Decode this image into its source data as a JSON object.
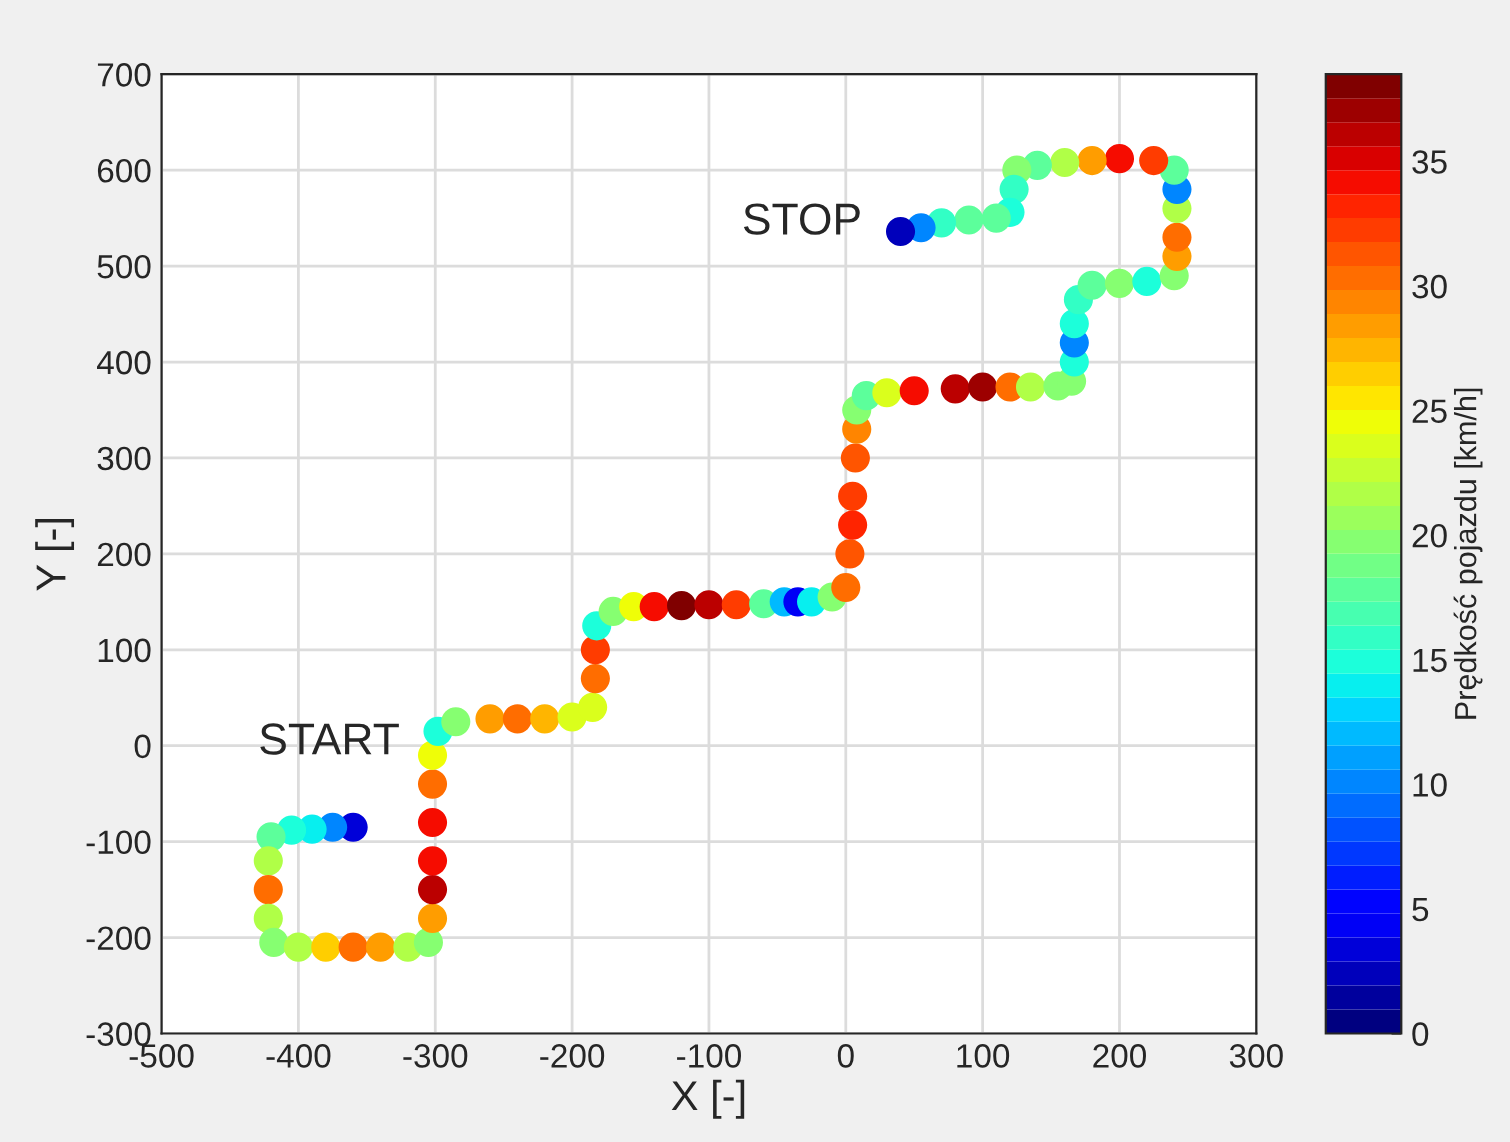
{
  "chart_data": {
    "type": "scatter",
    "xlabel": "X [-]",
    "ylabel": "Y [-]",
    "clabel": "Prędkość pojazdu [km/h]",
    "xlim": [
      -500,
      300
    ],
    "xticks": [
      -500,
      -400,
      -300,
      -200,
      -100,
      0,
      100,
      200,
      300
    ],
    "ylim": [
      -300,
      700
    ],
    "yticks": [
      -300,
      -200,
      -100,
      0,
      100,
      200,
      300,
      400,
      500,
      600,
      700
    ],
    "clim": [
      0,
      38.5
    ],
    "cticks": [
      0,
      5,
      10,
      15,
      20,
      25,
      30,
      35
    ],
    "grid": true,
    "marker": "circle",
    "legend": false,
    "annotations": [
      "START",
      "STOP"
    ],
    "series": [
      {
        "x": [
          -360,
          -375,
          -390,
          -405,
          -420,
          -422,
          -422,
          -422,
          -418,
          -400,
          -380,
          -360,
          -340,
          -320,
          -305,
          -302,
          -302,
          -302,
          -302,
          -302,
          -302,
          -298,
          -285,
          -260,
          -240,
          -220,
          -200,
          -185,
          -183,
          -183,
          -182,
          -170,
          -155,
          -140,
          -120,
          -100,
          -80,
          -60,
          -45,
          -35,
          -25,
          -10,
          0,
          3,
          5,
          5,
          7,
          8,
          8,
          15,
          30,
          50,
          80,
          100,
          120,
          135,
          155,
          165,
          167,
          167,
          167,
          170,
          180,
          200,
          220,
          240,
          242,
          242,
          242,
          242,
          240,
          225,
          200,
          180,
          160,
          140,
          125,
          123,
          120,
          110,
          90,
          70,
          55,
          40
        ],
        "values": [
          -85,
          -85,
          -87,
          -88,
          -95,
          -120,
          -150,
          -180,
          -205,
          -210,
          -210,
          -210,
          -210,
          -210,
          -205,
          -180,
          -150,
          -120,
          -80,
          -40,
          -10,
          15,
          25,
          28,
          28,
          28,
          30,
          40,
          70,
          100,
          125,
          140,
          145,
          145,
          146,
          147,
          147,
          148,
          150,
          150,
          150,
          155,
          165,
          200,
          230,
          260,
          300,
          330,
          350,
          365,
          368,
          370,
          372,
          374,
          374,
          374,
          375,
          380,
          400,
          420,
          440,
          465,
          480,
          482,
          484,
          490,
          510,
          530,
          560,
          580,
          600,
          610,
          612,
          610,
          608,
          605,
          600,
          580,
          556,
          550,
          548,
          545,
          540,
          536
        ],
        "cvalues": [
          3,
          10,
          14,
          15,
          18,
          22,
          30,
          22,
          20,
          22,
          26,
          30,
          28,
          22,
          20,
          28,
          36,
          34,
          34,
          30,
          25,
          15,
          20,
          28,
          30,
          27,
          24,
          24,
          30,
          32,
          15,
          20,
          25,
          34,
          38,
          36,
          32,
          18,
          12,
          4,
          14,
          20,
          30,
          31,
          33,
          32,
          31,
          29,
          20,
          18,
          24,
          34,
          36,
          37,
          30,
          22,
          20,
          20,
          15,
          10,
          15,
          16,
          18,
          20,
          15,
          20,
          28,
          30,
          22,
          10,
          18,
          32,
          34,
          28,
          22,
          18,
          20,
          16,
          15,
          18,
          18,
          16,
          10,
          2
        ]
      }
    ]
  }
}
